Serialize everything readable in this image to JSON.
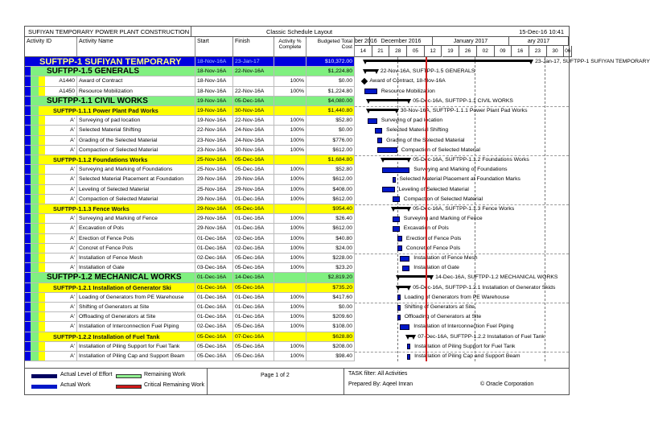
{
  "title": {
    "project": "SUFIYAN TEMPORARY POWER PLANT CONSTRUCTION",
    "layout": "Classic Schedule Layout",
    "datetime": "15-Dec-16 10:41"
  },
  "columns": {
    "id": "Activity ID",
    "name": "Activity Name",
    "start": "Start",
    "finish": "Finish",
    "pct": "Activity % Complete",
    "cost": "Budgeted Total Cost"
  },
  "timeline": {
    "months": [
      "ber 2016",
      "December 2016",
      "January 2017",
      "ary 2017"
    ],
    "weeks": [
      "14",
      "21",
      "28",
      "05",
      "12",
      "19",
      "26",
      "02",
      "09",
      "16",
      "23",
      "30",
      "06"
    ],
    "data_date": "12-Dec-16"
  },
  "colors": {
    "level1": "#0000e0",
    "level2": "#80f080",
    "level3": "#ffff00",
    "actual_work": "#0018c8",
    "critical": "#d02020"
  },
  "rows": [
    {
      "lvl": 1,
      "id": "",
      "name": "SUFTPP-1  SUFIYAN TEMPORARY",
      "start": "18-Nov-16A",
      "finish": "23-Jan-17",
      "pct": "",
      "cost": "$10,372.00",
      "label": "23-Jan-17, SUFTPP-1  SUFIYAN TEMPORARY"
    },
    {
      "lvl": 2,
      "id": "",
      "name": "SUFTPP-1.5  GENERALS",
      "start": "18-Nov-16A",
      "finish": "22-Nov-16A",
      "pct": "",
      "cost": "$1,224.80",
      "label": "22-Nov-16A, SUFTPP-1.5  GENERALS"
    },
    {
      "lvl": 4,
      "ms": true,
      "id": "A1440",
      "name": "Award of Contract",
      "start": "18-Nov-16A",
      "finish": "",
      "pct": "100%",
      "cost": "$0.00",
      "label": "Award of Contract, 18-Nov-16A"
    },
    {
      "lvl": 4,
      "id": "A1450",
      "name": "Resource Mobilization",
      "start": "18-Nov-16A",
      "finish": "22-Nov-16A",
      "pct": "100%",
      "cost": "$1,224.80",
      "label": "Resource Mobilization"
    },
    {
      "lvl": 2,
      "id": "",
      "name": "SUFTPP-1.1  CIVIL WORKS",
      "start": "19-Nov-16A",
      "finish": "05-Dec-16A",
      "pct": "",
      "cost": "$4,080.00",
      "label": "05-Dec-16A, SUFTPP-1.1  CIVIL WORKS"
    },
    {
      "lvl": 3,
      "id": "",
      "name": "SUFTPP-1.1.1  Power Plant Pad Works",
      "start": "19-Nov-16A",
      "finish": "30-Nov-16A",
      "pct": "",
      "cost": "$1,440.80",
      "label": "30-Nov-16A, SUFTPP-1.1.1  Power Plant Pad Works"
    },
    {
      "lvl": 4,
      "id": "A'",
      "name": "Surveying of pad location",
      "start": "19-Nov-16A",
      "finish": "22-Nov-16A",
      "pct": "100%",
      "cost": "$52.80",
      "label": "Surveying of pad location"
    },
    {
      "lvl": 4,
      "id": "A'",
      "name": "Selected Material Shifting",
      "start": "22-Nov-16A",
      "finish": "24-Nov-16A",
      "pct": "100%",
      "cost": "$0.00",
      "label": "Selected Material Shifting"
    },
    {
      "lvl": 4,
      "id": "A'",
      "name": "Grading of the Selected Material",
      "start": "23-Nov-16A",
      "finish": "24-Nov-16A",
      "pct": "100%",
      "cost": "$776.00",
      "label": "Grading of the Selected Material"
    },
    {
      "lvl": 4,
      "id": "A'",
      "name": "Compaction of Selected Material",
      "start": "23-Nov-16A",
      "finish": "30-Nov-16A",
      "pct": "100%",
      "cost": "$612.00",
      "label": "Compaction of Selected Material"
    },
    {
      "lvl": 3,
      "id": "",
      "name": "SUFTPP-1.1.2  Foundations Works",
      "start": "25-Nov-16A",
      "finish": "05-Dec-16A",
      "pct": "",
      "cost": "$1,684.80",
      "label": "05-Dec-16A, SUFTPP-1.1.2  Foundations Works"
    },
    {
      "lvl": 4,
      "id": "A'",
      "name": "Surveying and Marking of Foundations",
      "start": "25-Nov-16A",
      "finish": "05-Dec-16A",
      "pct": "100%",
      "cost": "$52.80",
      "label": "Surveying and Marking of Foundations"
    },
    {
      "lvl": 4,
      "id": "A'",
      "name": "Selected Material Placement at Foundation",
      "start": "29-Nov-16A",
      "finish": "29-Nov-16A",
      "pct": "100%",
      "cost": "$612.00",
      "label": "Selected Material Placement at Foundation Marks"
    },
    {
      "lvl": 4,
      "id": "A'",
      "name": "Leveling of Selected Material",
      "start": "25-Nov-16A",
      "finish": "29-Nov-16A",
      "pct": "100%",
      "cost": "$408.00",
      "label": "Leveling of Selected Material"
    },
    {
      "lvl": 4,
      "id": "A'",
      "name": "Compaction of Selected Material",
      "start": "29-Nov-16A",
      "finish": "01-Dec-16A",
      "pct": "100%",
      "cost": "$612.00",
      "label": "Compaction of Selected Material"
    },
    {
      "lvl": 3,
      "id": "",
      "name": "SUFTPP-1.1.3  Fence Works",
      "start": "29-Nov-16A",
      "finish": "05-Dec-16A",
      "pct": "",
      "cost": "$954.40",
      "label": "05-Dec-16A, SUFTPP-1.1.3  Fence Works"
    },
    {
      "lvl": 4,
      "id": "A'",
      "name": "Surveying and Marking of Fence",
      "start": "29-Nov-16A",
      "finish": "01-Dec-16A",
      "pct": "100%",
      "cost": "$26.40",
      "label": "Surveying and Marking of Fence"
    },
    {
      "lvl": 4,
      "id": "A'",
      "name": "Excavation of Pols",
      "start": "29-Nov-16A",
      "finish": "01-Dec-16A",
      "pct": "100%",
      "cost": "$612.00",
      "label": "Excavation of Pols"
    },
    {
      "lvl": 4,
      "id": "A'",
      "name": "Erection of Fence Pols",
      "start": "01-Dec-16A",
      "finish": "02-Dec-16A",
      "pct": "100%",
      "cost": "$40.80",
      "label": "Erection of Fence Pols"
    },
    {
      "lvl": 4,
      "id": "A'",
      "name": "Concret of Fence Pols",
      "start": "01-Dec-16A",
      "finish": "02-Dec-16A",
      "pct": "100%",
      "cost": "$24.00",
      "label": "Concret of Fence Pols"
    },
    {
      "lvl": 4,
      "id": "A'",
      "name": "Installation of Fence Mesh",
      "start": "02-Dec-16A",
      "finish": "05-Dec-16A",
      "pct": "100%",
      "cost": "$228.00",
      "label": "Installation of Fence Mesh"
    },
    {
      "lvl": 4,
      "id": "A'",
      "name": "Installation of Gate",
      "start": "03-Dec-16A",
      "finish": "05-Dec-16A",
      "pct": "100%",
      "cost": "$23.20",
      "label": "Installation of Gate"
    },
    {
      "lvl": 2,
      "id": "",
      "name": "SUFTPP-1.2  MECHANICAL WORKS",
      "start": "01-Dec-16A",
      "finish": "14-Dec-16A",
      "pct": "",
      "cost": "$2,819.20",
      "label": "14-Dec-16A, SUFTPP-1.2  MECHANICAL WORKS"
    },
    {
      "lvl": 3,
      "id": "",
      "name": "SUFTPP-1.2.1  Installation of Generator Ski",
      "start": "01-Dec-16A",
      "finish": "05-Dec-16A",
      "pct": "",
      "cost": "$735.20",
      "label": "05-Dec-16A, SUFTPP-1.2.1  Installation of Generator Skids"
    },
    {
      "lvl": 4,
      "id": "A'",
      "name": "Loading of Generators from PE Warehouse",
      "start": "01-Dec-16A",
      "finish": "01-Dec-16A",
      "pct": "100%",
      "cost": "$417.60",
      "label": "Loading of Generators from PE Warehouse"
    },
    {
      "lvl": 4,
      "id": "A'",
      "name": "Shifting of Generators at Site",
      "start": "01-Dec-16A",
      "finish": "01-Dec-16A",
      "pct": "100%",
      "cost": "$0.00",
      "label": "Shifting of Generators at Site"
    },
    {
      "lvl": 4,
      "id": "A'",
      "name": "Offloading of Generators at Site",
      "start": "01-Dec-16A",
      "finish": "01-Dec-16A",
      "pct": "100%",
      "cost": "$209.60",
      "label": "Offloading of Generators at Site"
    },
    {
      "lvl": 4,
      "id": "A'",
      "name": "Installation of Interconnection Fuel Piping",
      "start": "02-Dec-16A",
      "finish": "05-Dec-16A",
      "pct": "100%",
      "cost": "$108.00",
      "label": "Installation of Interconnection Fuel Piping"
    },
    {
      "lvl": 3,
      "id": "",
      "name": "SUFTPP-1.2.2  Installation of Fuel Tank",
      "start": "05-Dec-16A",
      "finish": "07-Dec-16A",
      "pct": "",
      "cost": "$628.80",
      "label": "07-Dec-16A, SUFTPP-1.2.2  Installation of Fuel Tank"
    },
    {
      "lvl": 4,
      "id": "A'",
      "name": "Installation of Piling Support for Fuel Tank",
      "start": "05-Dec-16A",
      "finish": "05-Dec-16A",
      "pct": "100%",
      "cost": "$208.00",
      "label": "Installation of Piling Support for Fuel Tank"
    },
    {
      "lvl": 4,
      "id": "A'",
      "name": "Installation of Piling Cap and Support Beam",
      "start": "05-Dec-16A",
      "finish": "05-Dec-16A",
      "pct": "100%",
      "cost": "$98.40",
      "label": "Installation of Piling Cap and Support Beam"
    }
  ],
  "legend": {
    "actual_loe": "Actual Level of Effort",
    "actual_work": "Actual Work",
    "remaining": "Remaining Work",
    "critical": "Critical Remaining Work"
  },
  "footer": {
    "page": "Page 1 of 2",
    "filter": "TASK filter: All Activities",
    "prepared": "Prepared By: Aqeel Imran",
    "copyright": "© Oracle Corporation"
  }
}
